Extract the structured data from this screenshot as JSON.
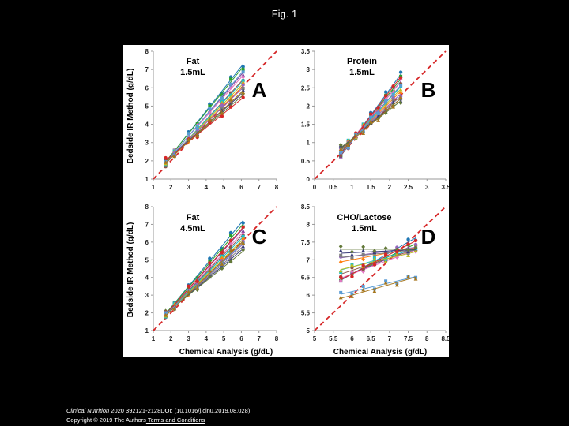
{
  "slide": {
    "title": "Fig. 1",
    "citation_journal": "Clinical Nutrition",
    "citation_rest": " 2020 392121-2128DOI: (10.1016/j.clnu.2019.08.028)",
    "copyright": "Copyright © 2019 The Authors",
    "terms_link": " Terms and Conditions"
  },
  "colors": {
    "identity_line": "#d62728",
    "series": [
      "#1f77b4",
      "#2ca02c",
      "#7f3f98",
      "#e377c2",
      "#8c564b",
      "#17becf",
      "#bcbd22",
      "#ff7f0e",
      "#9467bd",
      "#7f7f7f",
      "#393b79",
      "#637939",
      "#d62728",
      "#5a9bd4",
      "#a6761d"
    ]
  },
  "shared": {
    "ylabel": "Bedside IR Method (g/dL)",
    "xlabel": "Chemical Analysis (g/dL)"
  },
  "chart_data": [
    {
      "panel": "A",
      "type": "scatter",
      "title_line1": "Fat",
      "title_line2": "1.5mL",
      "xlim": [
        1,
        8
      ],
      "ylim": [
        1,
        8
      ],
      "xticks": [
        "1",
        "2",
        "3",
        "4",
        "5",
        "6",
        "7",
        "8"
      ],
      "yticks": [
        "1",
        "2",
        "3",
        "4",
        "5",
        "6",
        "7",
        "8"
      ],
      "x": [
        1.7,
        2.2,
        3.0,
        3.5,
        4.2,
        4.9,
        5.4,
        6.1
      ],
      "slopes": [
        1.22,
        1.18,
        1.12,
        1.08,
        1.05,
        1.02,
        0.98,
        0.95,
        0.92,
        0.88,
        0.85,
        0.82,
        0.78,
        1.15,
        0.9
      ],
      "intercepts": [
        -0.15,
        -0.05,
        0.0,
        0.1,
        0.05,
        0.15,
        0.25,
        0.3,
        0.4,
        0.45,
        0.55,
        0.6,
        0.7,
        -0.1,
        0.35
      ],
      "identity_line": [
        [
          1,
          1
        ],
        [
          8,
          8
        ]
      ]
    },
    {
      "panel": "B",
      "type": "scatter",
      "title_line1": "Protein",
      "title_line2": "1.5mL",
      "xlim": [
        0,
        3.5
      ],
      "ylim": [
        0,
        3.5
      ],
      "xticks": [
        "0",
        "0.5",
        "1",
        "1.5",
        "2",
        "2.5",
        "3",
        "3.5"
      ],
      "yticks": [
        "0",
        "0.5",
        "1",
        "1.5",
        "2",
        "2.5",
        "3",
        "3.5"
      ],
      "x": [
        0.7,
        0.9,
        1.1,
        1.3,
        1.5,
        1.7,
        1.9,
        2.1,
        2.3
      ],
      "slopes": [
        1.4,
        1.3,
        1.25,
        1.2,
        1.15,
        1.1,
        1.05,
        1.0,
        0.95,
        0.9,
        0.85,
        0.8,
        1.35,
        1.18,
        0.88
      ],
      "intercepts": [
        -0.35,
        -0.25,
        -0.2,
        -0.1,
        -0.08,
        0.0,
        0.05,
        0.1,
        0.15,
        0.2,
        0.25,
        0.3,
        -0.3,
        -0.15,
        0.18
      ],
      "identity_line": [
        [
          0,
          0
        ],
        [
          3.5,
          3.5
        ]
      ]
    },
    {
      "panel": "C",
      "type": "scatter",
      "title_line1": "Fat",
      "title_line2": "4.5mL",
      "xlim": [
        1,
        8
      ],
      "ylim": [
        1,
        8
      ],
      "xticks": [
        "1",
        "2",
        "3",
        "4",
        "5",
        "6",
        "7",
        "8"
      ],
      "yticks": [
        "1",
        "2",
        "3",
        "4",
        "5",
        "6",
        "7",
        "8"
      ],
      "x": [
        1.7,
        2.2,
        3.0,
        3.5,
        4.2,
        4.9,
        5.4,
        6.1
      ],
      "slopes": [
        1.2,
        1.15,
        1.1,
        1.06,
        1.03,
        1.0,
        0.97,
        0.94,
        0.9,
        0.87,
        0.84,
        0.8,
        1.12,
        0.92,
        0.96
      ],
      "intercepts": [
        -0.1,
        0.0,
        0.05,
        0.1,
        0.15,
        0.2,
        0.25,
        0.3,
        0.4,
        0.45,
        0.5,
        0.6,
        0.0,
        0.35,
        0.2
      ],
      "identity_line": [
        [
          1,
          1
        ],
        [
          8,
          8
        ]
      ]
    },
    {
      "panel": "D",
      "type": "scatter",
      "title_line1": "CHO/Lactose",
      "title_line2": "1.5mL",
      "xlim": [
        5,
        8.5
      ],
      "ylim": [
        5,
        8.5
      ],
      "xticks": [
        "5",
        "5.5",
        "6",
        "6.5",
        "7",
        "7.5",
        "8",
        "8.5"
      ],
      "yticks": [
        "5",
        "5.5",
        "6",
        "6.5",
        "7",
        "7.5",
        "8",
        "8.5"
      ],
      "x": [
        5.7,
        6.0,
        6.3,
        6.6,
        6.9,
        7.2,
        7.5,
        7.7
      ],
      "slopes": [
        0.6,
        0.5,
        0.45,
        0.4,
        0.35,
        0.3,
        0.25,
        0.2,
        0.15,
        0.1,
        0.05,
        0.0,
        0.55,
        0.25,
        0.3
      ],
      "intercepts": [
        3.0,
        3.6,
        3.9,
        4.2,
        4.6,
        5.0,
        5.3,
        5.8,
        6.2,
        6.5,
        6.9,
        7.3,
        3.3,
        4.6,
        4.2
      ],
      "identity_line": [
        [
          5,
          5
        ],
        [
          8.5,
          8.5
        ]
      ]
    }
  ]
}
